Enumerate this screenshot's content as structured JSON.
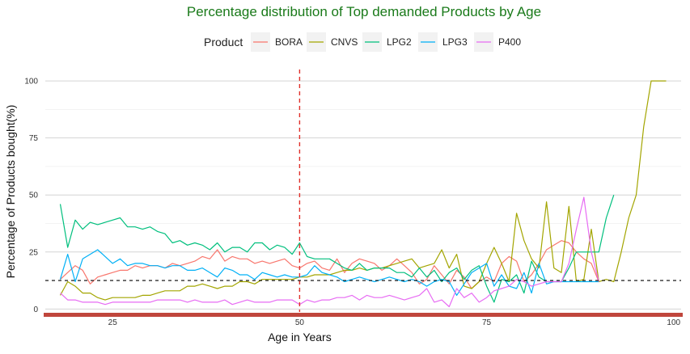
{
  "colors": {
    "title": "#1a7a1a",
    "grid": "#d4d4d4",
    "baseline_bar": "#c0463c",
    "vline": "#e0302a",
    "hline": "#000000"
  },
  "chart_data": {
    "type": "line",
    "title": "Percentage distribution of Top demanded Products by Age",
    "xlabel": "Age in Years",
    "ylabel": "Percentage of Products bought(%)",
    "legend_title": "Product",
    "legend_position": "top",
    "grid": true,
    "xlim": [
      16,
      101
    ],
    "ylim": [
      -2,
      105
    ],
    "xticks": [
      25,
      50,
      75,
      100
    ],
    "xtick_labels": [
      "25",
      "50",
      "75",
      "100"
    ],
    "yticks": [
      0,
      25,
      50,
      75,
      100
    ],
    "ytick_labels": [
      "0",
      "25",
      "50",
      "75",
      "100"
    ],
    "reference_lines": {
      "vertical_x": 50,
      "horizontal_y": 12.5
    },
    "series": [
      {
        "name": "BORA",
        "color": "#f8766d",
        "x": [
          18,
          19,
          20,
          21,
          22,
          23,
          24,
          25,
          26,
          27,
          28,
          29,
          30,
          31,
          32,
          33,
          34,
          35,
          36,
          37,
          38,
          39,
          40,
          41,
          42,
          43,
          44,
          45,
          46,
          47,
          48,
          49,
          50,
          51,
          52,
          53,
          54,
          55,
          56,
          57,
          58,
          59,
          60,
          61,
          62,
          63,
          64,
          65,
          66,
          67,
          68,
          69,
          70,
          71,
          72,
          73,
          74,
          75,
          76,
          77,
          78,
          79,
          80,
          81,
          82,
          83,
          84,
          85,
          86,
          87,
          88,
          89,
          90
        ],
        "y": [
          13,
          16,
          19,
          17,
          11,
          14,
          15,
          16,
          17,
          17,
          19,
          18,
          19,
          19,
          18,
          20,
          19,
          20,
          21,
          23,
          22,
          26,
          21,
          23,
          22,
          22,
          20,
          21,
          20,
          21,
          22,
          19,
          18,
          20,
          21,
          18,
          17,
          22,
          16,
          20,
          22,
          21,
          20,
          17,
          19,
          22,
          19,
          16,
          11,
          13,
          19,
          15,
          11,
          17,
          14,
          9,
          12,
          14,
          12,
          20,
          23,
          21,
          12,
          15,
          20,
          26,
          28,
          30,
          29,
          25,
          22,
          20,
          12
        ]
      },
      {
        "name": "CNVS",
        "color": "#a3a500",
        "x": [
          18,
          19,
          20,
          21,
          22,
          23,
          24,
          25,
          26,
          27,
          28,
          29,
          30,
          31,
          32,
          33,
          34,
          35,
          36,
          37,
          38,
          39,
          40,
          41,
          42,
          43,
          44,
          45,
          46,
          47,
          48,
          49,
          50,
          51,
          52,
          53,
          54,
          55,
          56,
          57,
          58,
          59,
          60,
          61,
          62,
          63,
          64,
          65,
          66,
          67,
          68,
          69,
          70,
          71,
          72,
          73,
          74,
          75,
          76,
          77,
          78,
          79,
          80,
          81,
          82,
          83,
          84,
          85,
          86,
          87,
          88,
          89,
          90,
          91,
          92,
          93,
          94,
          95,
          96,
          97,
          98,
          99
        ],
        "y": [
          6,
          12,
          10,
          7,
          7,
          5,
          4,
          5,
          5,
          5,
          5,
          6,
          6,
          7,
          8,
          8,
          8,
          10,
          10,
          11,
          10,
          9,
          10,
          10,
          12,
          12,
          11,
          13,
          13,
          13,
          13,
          13,
          14,
          14,
          15,
          15,
          15,
          16,
          17,
          17,
          18,
          17,
          18,
          18,
          19,
          20,
          21,
          22,
          18,
          19,
          20,
          26,
          18,
          24,
          10,
          9,
          12,
          20,
          27,
          20,
          12,
          42,
          30,
          22,
          18,
          47,
          18,
          16,
          45,
          12,
          13,
          35,
          12,
          13,
          12,
          25,
          40,
          50,
          80,
          100,
          100,
          100
        ]
      },
      {
        "name": "LPG2",
        "color": "#00bf7d",
        "x": [
          18,
          19,
          20,
          21,
          22,
          23,
          24,
          25,
          26,
          27,
          28,
          29,
          30,
          31,
          32,
          33,
          34,
          35,
          36,
          37,
          38,
          39,
          40,
          41,
          42,
          43,
          44,
          45,
          46,
          47,
          48,
          49,
          50,
          51,
          52,
          53,
          54,
          55,
          56,
          57,
          58,
          59,
          60,
          61,
          62,
          63,
          64,
          65,
          66,
          67,
          68,
          69,
          70,
          71,
          72,
          73,
          74,
          75,
          76,
          77,
          78,
          79,
          80,
          81,
          82,
          83,
          84,
          85,
          86,
          87,
          88,
          89,
          90,
          91,
          92
        ],
        "y": [
          46,
          27,
          39,
          35,
          38,
          37,
          38,
          39,
          40,
          36,
          36,
          35,
          36,
          34,
          33,
          29,
          30,
          28,
          29,
          28,
          26,
          29,
          25,
          27,
          27,
          25,
          29,
          29,
          26,
          28,
          27,
          24,
          29,
          23,
          22,
          22,
          22,
          20,
          18,
          17,
          20,
          17,
          18,
          18,
          18,
          16,
          16,
          14,
          18,
          14,
          17,
          12,
          16,
          18,
          13,
          17,
          19,
          10,
          3,
          13,
          12,
          15,
          7,
          21,
          14,
          12,
          12,
          12,
          18,
          25,
          25,
          25,
          25,
          40,
          50
        ]
      },
      {
        "name": "LPG3",
        "color": "#00b0f6",
        "x": [
          18,
          19,
          20,
          21,
          22,
          23,
          24,
          25,
          26,
          27,
          28,
          29,
          30,
          31,
          32,
          33,
          34,
          35,
          36,
          37,
          38,
          39,
          40,
          41,
          42,
          43,
          44,
          45,
          46,
          47,
          48,
          49,
          50,
          51,
          52,
          53,
          54,
          55,
          56,
          57,
          58,
          59,
          60,
          61,
          62,
          63,
          64,
          65,
          66,
          67,
          68,
          69,
          70,
          71,
          72,
          73,
          74,
          75,
          76,
          77,
          78,
          79,
          80,
          81,
          82,
          83,
          84,
          85,
          86,
          87,
          88,
          89,
          90
        ],
        "y": [
          13,
          24,
          12,
          22,
          24,
          26,
          23,
          20,
          22,
          19,
          20,
          20,
          19,
          19,
          18,
          19,
          19,
          17,
          17,
          18,
          16,
          14,
          18,
          17,
          15,
          15,
          13,
          16,
          15,
          14,
          15,
          14,
          14,
          15,
          19,
          16,
          15,
          14,
          12,
          13,
          14,
          13,
          12,
          13,
          14,
          13,
          12,
          13,
          12,
          10,
          12,
          13,
          12,
          6,
          11,
          16,
          18,
          20,
          10,
          15,
          10,
          9,
          16,
          7,
          20,
          11,
          12,
          12,
          12,
          12,
          12,
          12,
          12
        ]
      },
      {
        "name": "P400",
        "color": "#e76bf3",
        "x": [
          18,
          19,
          20,
          21,
          22,
          23,
          24,
          25,
          26,
          27,
          28,
          29,
          30,
          31,
          32,
          33,
          34,
          35,
          36,
          37,
          38,
          39,
          40,
          41,
          42,
          43,
          44,
          45,
          46,
          47,
          48,
          49,
          50,
          51,
          52,
          53,
          54,
          55,
          56,
          57,
          58,
          59,
          60,
          61,
          62,
          63,
          64,
          65,
          66,
          67,
          68,
          69,
          70,
          71,
          72,
          73,
          74,
          75,
          76,
          77,
          78,
          79,
          80,
          81,
          82,
          83,
          84,
          85,
          86,
          87,
          88,
          89,
          90
        ],
        "y": [
          7,
          4,
          4,
          3,
          3,
          3,
          2,
          3,
          3,
          3,
          3,
          3,
          3,
          4,
          4,
          4,
          4,
          3,
          4,
          3,
          3,
          3,
          4,
          2,
          3,
          4,
          3,
          3,
          3,
          4,
          4,
          4,
          2,
          4,
          3,
          4,
          4,
          5,
          5,
          6,
          4,
          6,
          5,
          5,
          6,
          5,
          4,
          5,
          6,
          9,
          3,
          4,
          1,
          9,
          5,
          7,
          3,
          5,
          8,
          9,
          10,
          13,
          12,
          10,
          11,
          12,
          12,
          12,
          20,
          35,
          49,
          25,
          12
        ]
      }
    ]
  }
}
